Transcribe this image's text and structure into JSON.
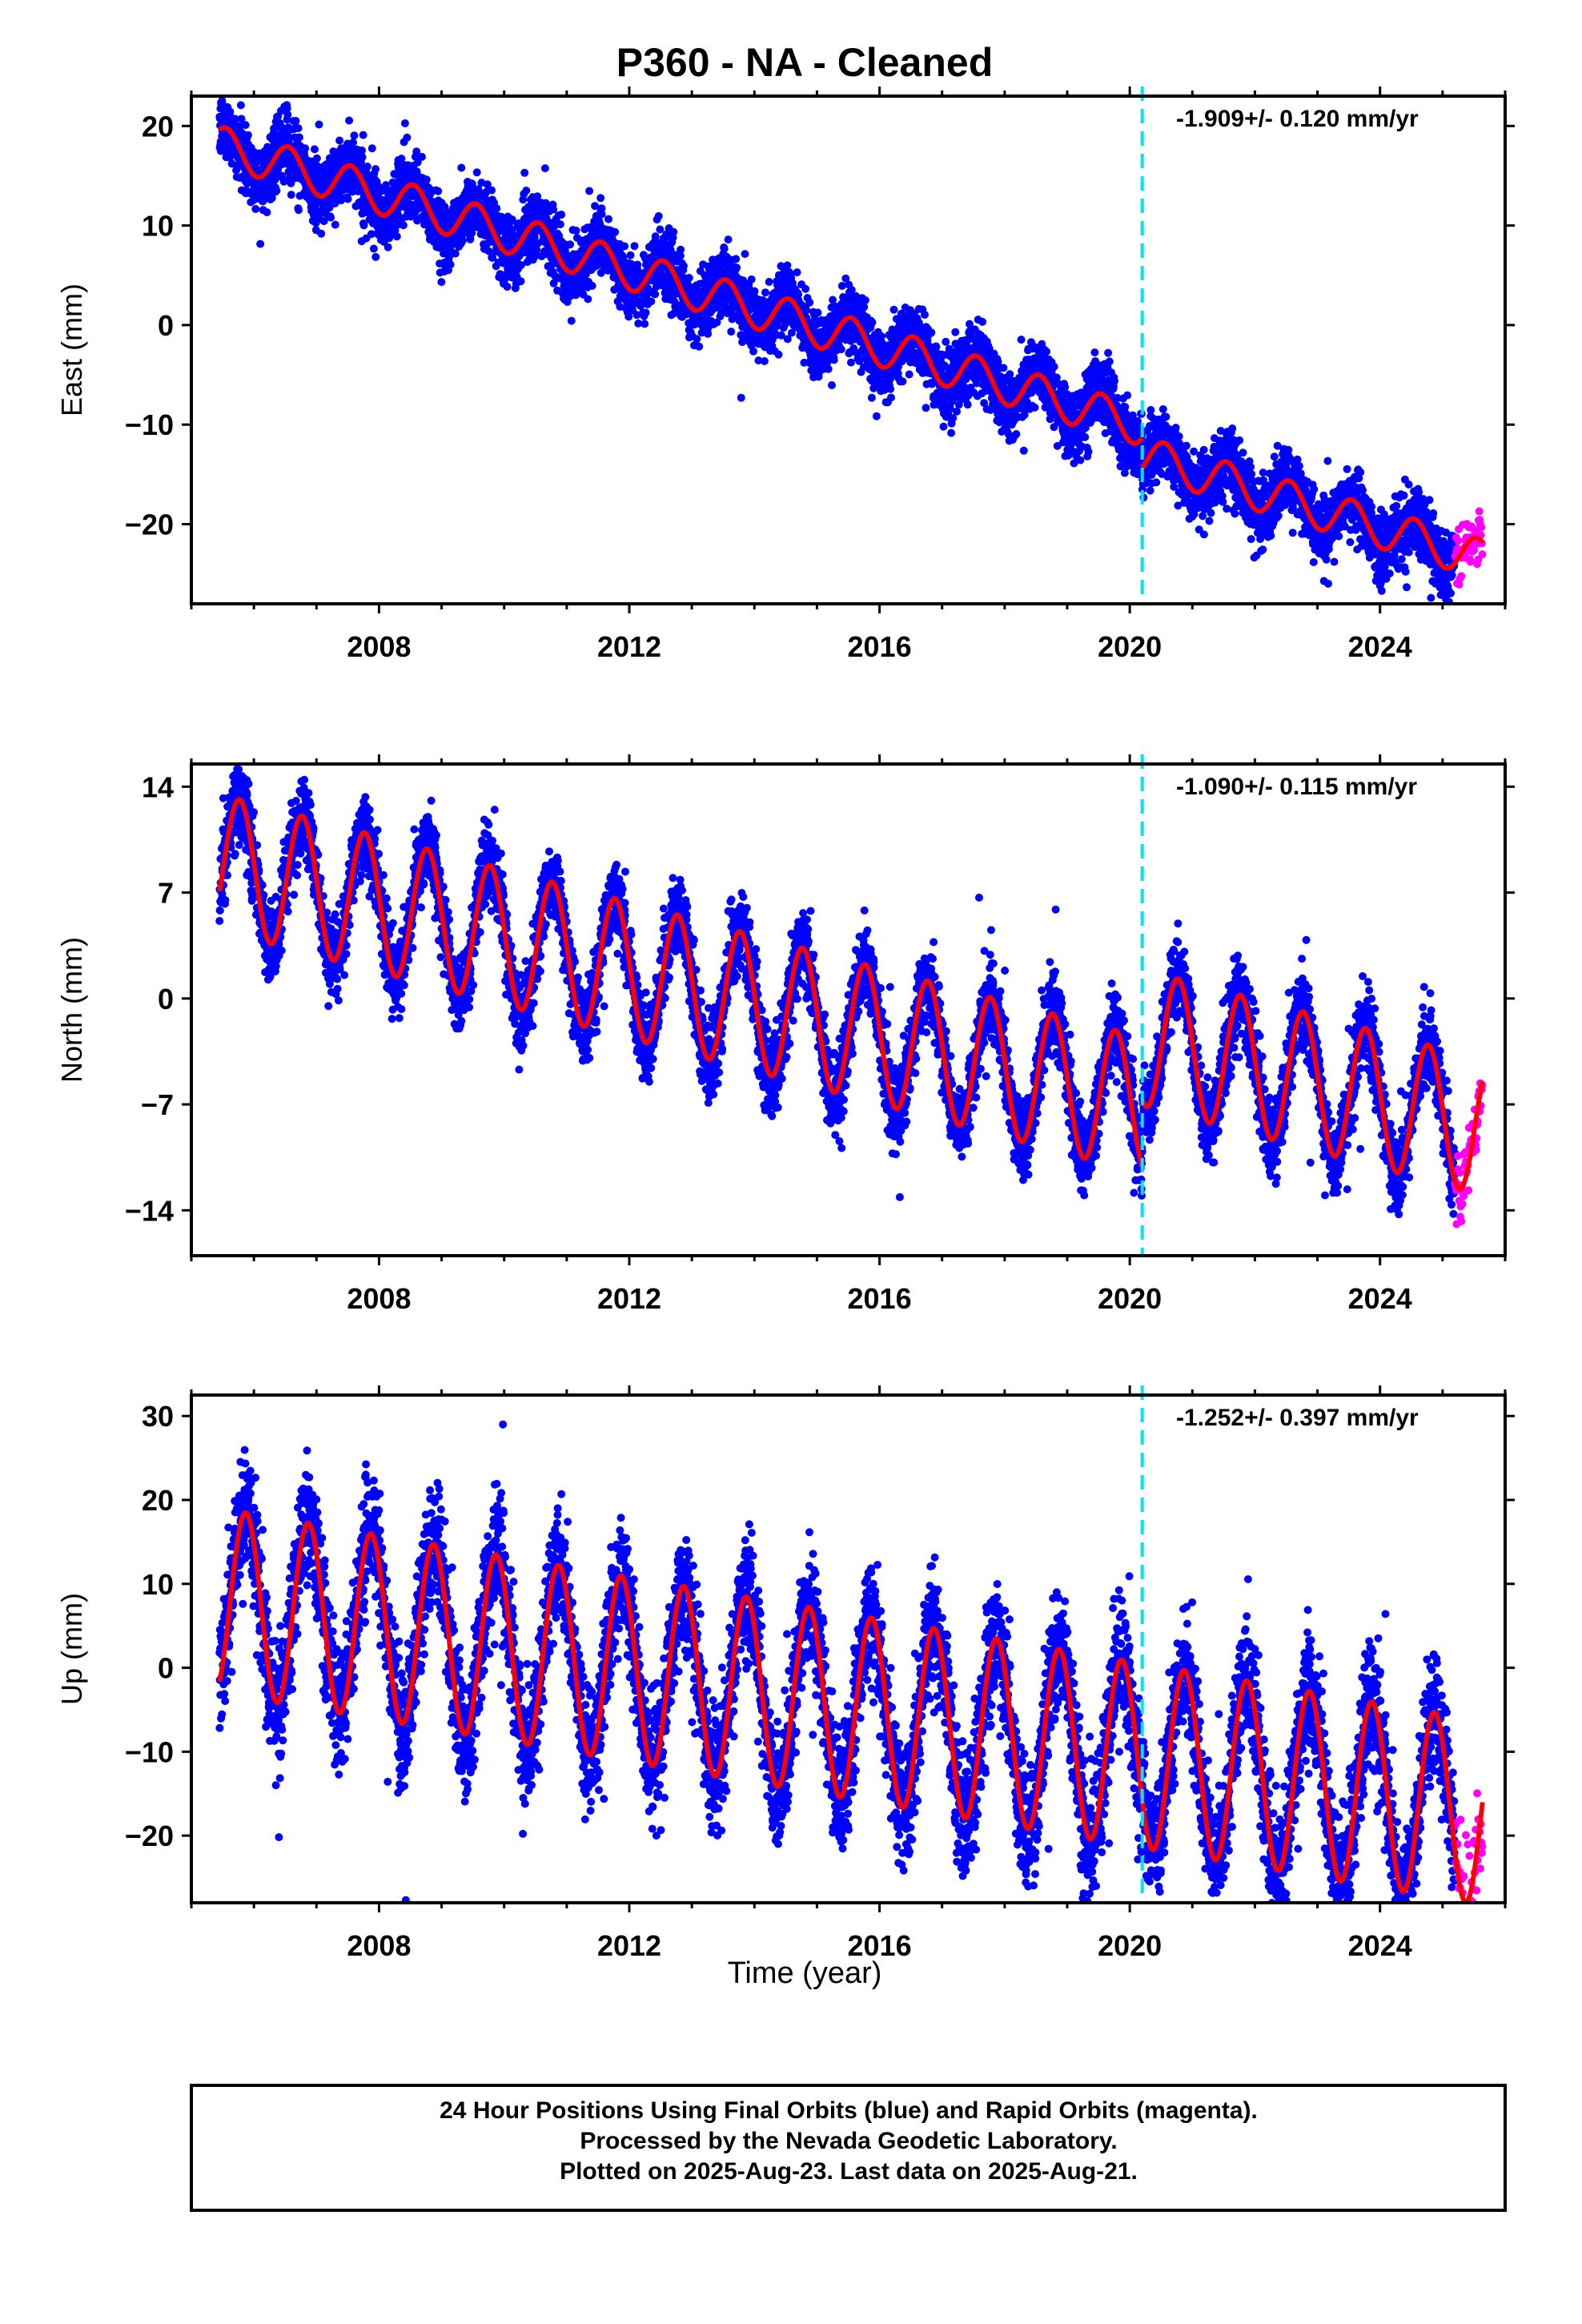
{
  "title": "P360  - NA - Cleaned",
  "xlabel": "Time (year)",
  "colors": {
    "final_orbits": "#0000ff",
    "rapid_orbits": "#ff00ff",
    "model": "#ff0000",
    "event_line": "#00e5ff"
  },
  "footer": [
    "24 Hour Positions Using Final Orbits (blue) and Rapid Orbits (magenta).",
    "Processed by the Nevada Geodetic Laboratory.",
    "Plotted on 2025-Aug-23. Last data on 2025-Aug-21."
  ],
  "chart_data": [
    {
      "type": "scatter",
      "ylabel": "East (mm)",
      "rate_label": "-1.909+/- 0.120 mm/yr",
      "xlim": [
        2005.0,
        2026.0
      ],
      "ylim": [
        -28.0,
        23.0
      ],
      "xticks": [
        2008,
        2012,
        2016,
        2020,
        2024
      ],
      "yticks": [
        -20,
        -10,
        0,
        10,
        20
      ],
      "ytick_labels": [
        "−20",
        "−10",
        "0",
        "10",
        "20"
      ],
      "event_line_x": 2020.2,
      "model": {
        "offset": 18.0,
        "slope": -1.909,
        "annual_amp": 2.0,
        "annual_phase": 0.3,
        "noise": 1.6,
        "step_at": 2020.2,
        "step": -3.0
      },
      "final_range": [
        2005.45,
        2025.2
      ],
      "rapid_range": [
        2025.2,
        2025.64
      ]
    },
    {
      "type": "scatter",
      "ylabel": "North (mm)",
      "rate_label": "-1.090+/- 0.115 mm/yr",
      "xlim": [
        2005.0,
        2026.0
      ],
      "ylim": [
        -17.0,
        15.5
      ],
      "xticks": [
        2008,
        2012,
        2016,
        2020,
        2024
      ],
      "yticks": [
        -14,
        -7,
        0,
        7,
        14
      ],
      "ytick_labels": [
        "−14",
        "−7",
        "0",
        "7",
        "14"
      ],
      "event_line_x": 2020.2,
      "model": {
        "offset": 9.0,
        "slope": -1.09,
        "annual_amp": 4.5,
        "annual_phase": 0.52,
        "noise": 1.3,
        "step_at": 2020.2,
        "step": 4.5
      },
      "final_range": [
        2005.45,
        2025.2
      ],
      "rapid_range": [
        2025.2,
        2025.64
      ]
    },
    {
      "type": "scatter",
      "ylabel": "Up (mm)",
      "rate_label": "-1.252+/- 0.397 mm/yr",
      "xlim": [
        2005.0,
        2026.0
      ],
      "ylim": [
        -28.0,
        32.5
      ],
      "xticks": [
        2008,
        2012,
        2016,
        2020,
        2024
      ],
      "yticks": [
        -20,
        -10,
        0,
        10,
        20,
        30
      ],
      "ytick_labels": [
        "−20",
        "−10",
        "0",
        "10",
        "20",
        "30"
      ],
      "event_line_x": 2020.2,
      "model": {
        "offset": 8.0,
        "slope": -1.252,
        "annual_amp": 11.0,
        "annual_phase": 0.62,
        "noise": 3.6,
        "step_at": 2020.2,
        "step": 0.0
      },
      "final_range": [
        2005.45,
        2025.2
      ],
      "rapid_range": [
        2025.2,
        2025.64
      ]
    }
  ]
}
